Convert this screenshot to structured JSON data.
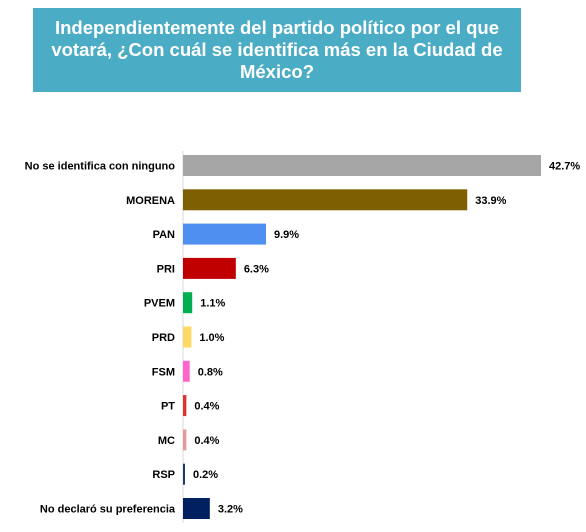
{
  "title": "Independientemente del partido político por el que votará, ¿Con cuál se identifica más en la Ciudad de México?",
  "chart_data": {
    "type": "bar",
    "orientation": "horizontal",
    "categories": [
      "No se identifica con ninguno",
      "MORENA",
      "PAN",
      "PRI",
      "PVEM",
      "PRD",
      "FSM",
      "PT",
      "MC",
      "RSP",
      "No declaró su preferencia"
    ],
    "values": [
      42.7,
      33.9,
      9.9,
      6.3,
      1.1,
      1.0,
      0.8,
      0.4,
      0.4,
      0.2,
      3.2
    ],
    "value_labels": [
      "42.7%",
      "33.9%",
      "9.9%",
      "6.3%",
      "1.1%",
      "1.0%",
      "0.8%",
      "0.4%",
      "0.4%",
      "0.2%",
      "3.2%"
    ],
    "colors": [
      "#a6a6a6",
      "#7f6000",
      "#4f8ff0",
      "#c00000",
      "#00b050",
      "#ffd966",
      "#ff66cc",
      "#e03030",
      "#e89a9a",
      "#1f3864",
      "#002060"
    ],
    "xlim": [
      0,
      42.7
    ],
    "xlabel": "",
    "ylabel": "",
    "grid": false,
    "legend": "none"
  }
}
